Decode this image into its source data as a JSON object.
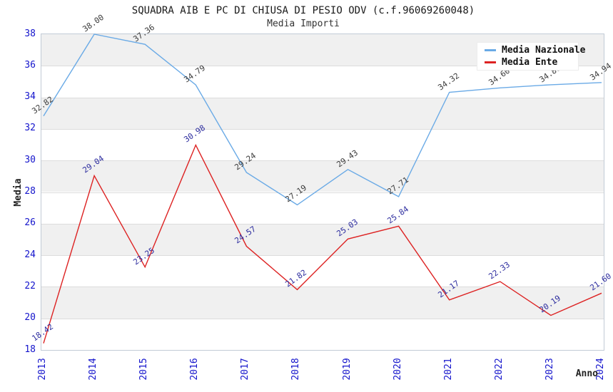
{
  "header": {
    "title": "SQUADRA AIB E PC DI CHIUSA DI PESIO ODV (c.f.96069260048)",
    "subtitle": "Media Importi"
  },
  "chart_data": {
    "type": "line",
    "x": [
      "2013",
      "2014",
      "2015",
      "2016",
      "2017",
      "2018",
      "2019",
      "2020",
      "2021",
      "2022",
      "2023",
      "2024"
    ],
    "series": [
      {
        "name": "Media Nazionale",
        "color": "#6aaae6",
        "label_color": "#3a3a3a",
        "values": [
          32.82,
          38.0,
          37.36,
          34.79,
          29.24,
          27.19,
          29.43,
          27.71,
          34.32,
          34.6,
          34.8,
          34.94
        ]
      },
      {
        "name": "Media Ente",
        "color": "#dd2222",
        "label_color": "#2b2b9e",
        "values": [
          18.42,
          29.04,
          23.25,
          30.98,
          24.57,
          21.82,
          25.03,
          25.84,
          21.17,
          22.33,
          20.19,
          21.6
        ]
      }
    ],
    "xlabel": "Anno",
    "ylabel": "Media",
    "ylim": [
      18,
      38
    ],
    "ytick_step": 2,
    "grid": "horizontal-bands",
    "band_colors": [
      "#f0f0f0",
      "#ffffff"
    ],
    "axis_tick_color": "#1414cc",
    "legend_position": "top-right"
  }
}
